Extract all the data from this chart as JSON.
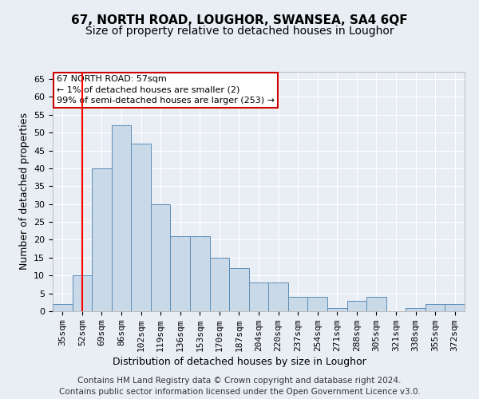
{
  "title": "67, NORTH ROAD, LOUGHOR, SWANSEA, SA4 6QF",
  "subtitle": "Size of property relative to detached houses in Loughor",
  "xlabel": "Distribution of detached houses by size in Loughor",
  "ylabel": "Number of detached properties",
  "bar_labels": [
    "35sqm",
    "52sqm",
    "69sqm",
    "86sqm",
    "102sqm",
    "119sqm",
    "136sqm",
    "153sqm",
    "170sqm",
    "187sqm",
    "204sqm",
    "220sqm",
    "237sqm",
    "254sqm",
    "271sqm",
    "288sqm",
    "305sqm",
    "321sqm",
    "338sqm",
    "355sqm",
    "372sqm"
  ],
  "bar_values": [
    2,
    10,
    40,
    52,
    47,
    30,
    21,
    21,
    15,
    12,
    8,
    8,
    4,
    4,
    1,
    3,
    4,
    0,
    1,
    2,
    2
  ],
  "bar_color": "#c9d9e8",
  "bar_edge_color": "#5b8db8",
  "red_line_x": 1.0,
  "ylim": [
    0,
    67
  ],
  "yticks": [
    0,
    5,
    10,
    15,
    20,
    25,
    30,
    35,
    40,
    45,
    50,
    55,
    60,
    65
  ],
  "annotation_title": "67 NORTH ROAD: 57sqm",
  "annotation_line1": "← 1% of detached houses are smaller (2)",
  "annotation_line2": "99% of semi-detached houses are larger (253) →",
  "annotation_box_color": "#ffffff",
  "annotation_box_edge": "#cc0000",
  "footer_line1": "Contains HM Land Registry data © Crown copyright and database right 2024.",
  "footer_line2": "Contains public sector information licensed under the Open Government Licence v3.0.",
  "background_color": "#e8eef4",
  "plot_background": "#e8eef4",
  "grid_color": "#ffffff",
  "title_fontsize": 11,
  "subtitle_fontsize": 10,
  "axis_label_fontsize": 9,
  "tick_fontsize": 8,
  "footer_fontsize": 7.5
}
